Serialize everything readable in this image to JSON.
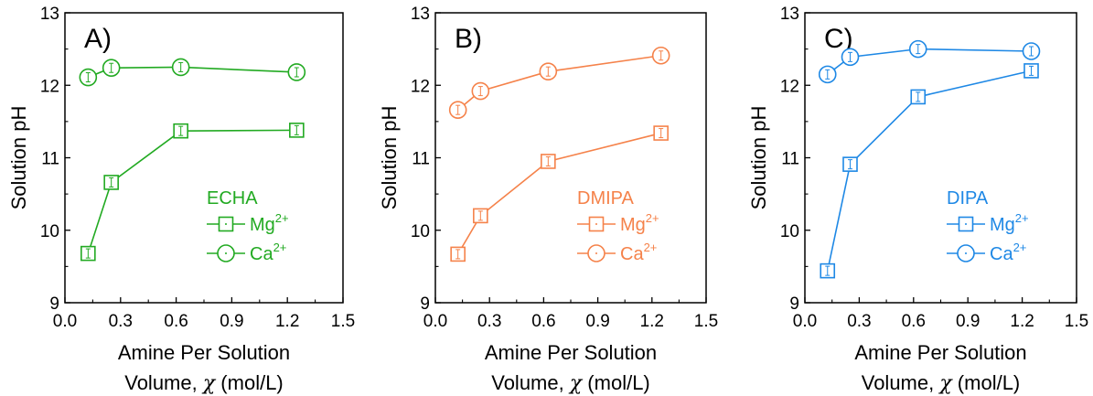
{
  "chart_data": [
    {
      "type": "line",
      "panel_label": "A)",
      "legend_title": "ECHA",
      "color": "#22aa22",
      "ylabel": "Solution pH",
      "xlabel_line1": "Amine Per Solution",
      "xlabel_line2_prefix": "Volume, ",
      "xlabel_symbol": "χ",
      "xlabel_line2_suffix": " (mol/L)",
      "xlim": [
        0.0,
        1.5
      ],
      "ylim": [
        9,
        13
      ],
      "xticks": [
        "0.0",
        "0.3",
        "0.6",
        "0.9",
        "1.2",
        "1.5"
      ],
      "yticks": [
        "9",
        "10",
        "11",
        "12",
        "13"
      ],
      "legend_position": "center-right",
      "series": [
        {
          "name": "Mg",
          "sup": "2+",
          "marker": "square",
          "x": [
            0.125,
            0.25,
            0.625,
            1.25
          ],
          "y": [
            9.68,
            10.66,
            11.37,
            11.38
          ]
        },
        {
          "name": "Ca",
          "sup": "2+",
          "marker": "circle",
          "x": [
            0.125,
            0.25,
            0.625,
            1.25
          ],
          "y": [
            12.11,
            12.24,
            12.25,
            12.18
          ]
        }
      ]
    },
    {
      "type": "line",
      "panel_label": "B)",
      "legend_title": "DMIPA",
      "color": "#f5824a",
      "ylabel": "Solution pH",
      "xlabel_line1": "Amine Per Solution",
      "xlabel_line2_prefix": "Volume, ",
      "xlabel_symbol": "χ",
      "xlabel_line2_suffix": " (mol/L)",
      "xlim": [
        0.0,
        1.5
      ],
      "ylim": [
        9,
        13
      ],
      "xticks": [
        "0.0",
        "0.3",
        "0.6",
        "0.9",
        "1.2",
        "1.5"
      ],
      "yticks": [
        "9",
        "10",
        "11",
        "12",
        "13"
      ],
      "legend_position": "center-right",
      "series": [
        {
          "name": "Mg",
          "sup": "2+",
          "marker": "square",
          "x": [
            0.125,
            0.25,
            0.625,
            1.25
          ],
          "y": [
            9.67,
            10.2,
            10.95,
            11.34
          ]
        },
        {
          "name": "Ca",
          "sup": "2+",
          "marker": "circle",
          "x": [
            0.125,
            0.25,
            0.625,
            1.25
          ],
          "y": [
            11.66,
            11.92,
            12.19,
            12.41
          ]
        }
      ]
    },
    {
      "type": "line",
      "panel_label": "C)",
      "legend_title": "DIPA",
      "color": "#1e88e5",
      "ylabel": "Solution pH",
      "xlabel_line1": "Amine Per Solution",
      "xlabel_line2_prefix": "Volume, ",
      "xlabel_symbol": "χ",
      "xlabel_line2_suffix": " (mol/L)",
      "xlim": [
        0.0,
        1.5
      ],
      "ylim": [
        9,
        13
      ],
      "xticks": [
        "0.0",
        "0.3",
        "0.6",
        "0.9",
        "1.2",
        "1.5"
      ],
      "yticks": [
        "9",
        "10",
        "11",
        "12",
        "13"
      ],
      "legend_position": "center-right",
      "series": [
        {
          "name": "Mg",
          "sup": "2+",
          "marker": "square",
          "x": [
            0.125,
            0.25,
            0.625,
            1.25
          ],
          "y": [
            9.44,
            10.91,
            11.84,
            12.2
          ]
        },
        {
          "name": "Ca",
          "sup": "2+",
          "marker": "circle",
          "x": [
            0.125,
            0.25,
            0.625,
            1.25
          ],
          "y": [
            12.15,
            12.39,
            12.5,
            12.47
          ]
        }
      ]
    }
  ]
}
